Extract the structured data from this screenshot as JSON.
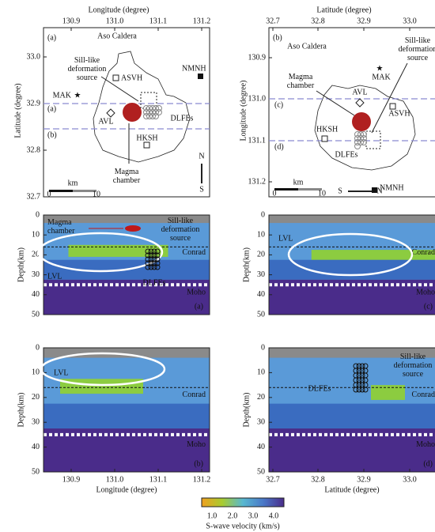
{
  "map_a": {
    "panel": "(a)",
    "x_label": "Longitude (degree)",
    "y_label": "Latitude (degree)",
    "x_ticks": [
      "130.9",
      "131.0",
      "131.1",
      "131.2"
    ],
    "y_ticks": [
      "33.0",
      "32.9",
      "32.8",
      "32.7"
    ],
    "caldera": "Aso Caldera",
    "sill": [
      "Sill-like",
      "deformation",
      "source"
    ],
    "asvh": "ASVH",
    "nmnh": "NMNH",
    "mak": "MAK",
    "line_a": "(a)",
    "line_b": "(b)",
    "avl": "AVL",
    "dlfes": "DLFEs",
    "hksh": "HKSH",
    "chamber": [
      "Magma",
      "chamber"
    ],
    "north": "N",
    "south": "S",
    "scale_unit": "km",
    "scale_0": "0",
    "scale_10": "10"
  },
  "map_b": {
    "panel": "(b)",
    "x_label": "Latitude (degree)",
    "y_label": "Longitude (degree)",
    "x_ticks": [
      "32.7",
      "32.8",
      "32.9",
      "33.0"
    ],
    "y_ticks": [
      "130.9",
      "131.0",
      "131.1",
      "131.2"
    ],
    "caldera": "Aso Caldera",
    "sill": [
      "Sill-like",
      "deformation",
      "source"
    ],
    "mak": "MAK",
    "chamber": [
      "Magma",
      "chamber"
    ],
    "avl": "AVL",
    "asvh": "ASVH",
    "line_c": "(c)",
    "line_d": "(d)",
    "hksh": "HKSH",
    "dlfes": "DLFEs",
    "scale_unit": "km",
    "scale_0": "0",
    "scale_10": "10",
    "south": "S",
    "north": "N",
    "nmnh": "NMNH"
  },
  "section_a": {
    "panel": "(a)",
    "y_label": "Depth(km)",
    "y_ticks": [
      "0",
      "10",
      "20",
      "30",
      "40",
      "50"
    ],
    "chamber": [
      "Magma",
      "chamber"
    ],
    "sill": [
      "Sill-like",
      "deformation",
      "source"
    ],
    "conrad": "Conrad",
    "dlfes": "DLFEs",
    "lvl": "LVL",
    "moho": "Moho"
  },
  "section_b": {
    "panel": "(b)",
    "y_label": "Depth(km)",
    "y_ticks": [
      "0",
      "10",
      "20",
      "30",
      "40",
      "50"
    ],
    "lvl": "LVL",
    "conrad": "Conrad",
    "moho": "Moho",
    "x_ticks": [
      "130.9",
      "131.0",
      "131.1",
      "131.2"
    ],
    "x_label": "Longitude (degree)"
  },
  "section_c": {
    "panel": "(c)",
    "y_label": "Depth(km)",
    "y_ticks": [
      "0",
      "10",
      "20",
      "30",
      "40",
      "50"
    ],
    "lvl": "LVL",
    "conrad": "Conrad",
    "moho": "Moho"
  },
  "section_d": {
    "panel": "(d)",
    "y_label": "Depth(km)",
    "y_ticks": [
      "0",
      "10",
      "20",
      "30",
      "40",
      "50"
    ],
    "sill": [
      "Sill-like",
      "deformation",
      "source"
    ],
    "conrad": "Conrad",
    "dlfes": "DLFEs",
    "moho": "Moho",
    "x_ticks": [
      "32.7",
      "32.8",
      "32.9",
      "33.0"
    ],
    "x_label": "Latitude (degree)"
  },
  "colorbar": {
    "ticks": [
      "1.0",
      "2.0",
      "3.0",
      "4.0"
    ],
    "label": "S-wave velocity (km/s)"
  }
}
